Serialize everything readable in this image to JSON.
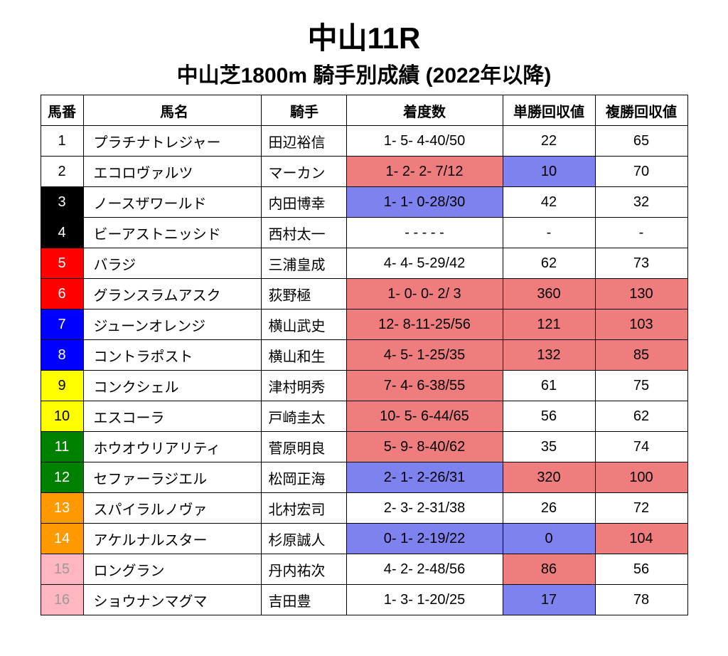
{
  "title_main": "中山11R",
  "title_sub": "中山芝1800m 騎手別成績 (2022年以降)",
  "columns": [
    "馬番",
    "馬名",
    "騎手",
    "着度数",
    "単勝回収値",
    "複勝回収値"
  ],
  "colors": {
    "white": {
      "bg": "#ffffff",
      "fg": "#000000"
    },
    "black": {
      "bg": "#000000",
      "fg": "#ffffff"
    },
    "red": {
      "bg": "#ff0000",
      "fg": "#ffffff"
    },
    "blue": {
      "bg": "#0000ff",
      "fg": "#ffffff"
    },
    "yellow": {
      "bg": "#ffff00",
      "fg": "#000000"
    },
    "green": {
      "bg": "#008000",
      "fg": "#ffffff"
    },
    "orange": {
      "bg": "#ff9900",
      "fg": "#ffffff"
    },
    "pink": {
      "bg": "#ffb6c1",
      "fg": "#999999"
    }
  },
  "highlight": {
    "red": "#ef7d7d",
    "blue": "#7d82ef"
  },
  "rows": [
    {
      "num": "1",
      "num_color": "white",
      "name": "プラチナトレジャー",
      "jockey": "田辺裕信",
      "rec": "1- 5- 4-40/50",
      "rec_hl": "",
      "win": "22",
      "win_hl": "",
      "place": "65",
      "place_hl": ""
    },
    {
      "num": "2",
      "num_color": "white",
      "name": "エコロヴァルツ",
      "jockey": "マーカン",
      "rec": "1- 2- 2- 7/12",
      "rec_hl": "red",
      "win": "10",
      "win_hl": "blue",
      "place": "70",
      "place_hl": ""
    },
    {
      "num": "3",
      "num_color": "black",
      "name": "ノースザワールド",
      "jockey": "内田博幸",
      "rec": "1- 1- 0-28/30",
      "rec_hl": "blue",
      "win": "42",
      "win_hl": "",
      "place": "32",
      "place_hl": ""
    },
    {
      "num": "4",
      "num_color": "black",
      "name": "ビーアストニッシド",
      "jockey": "西村太一",
      "rec": "-  -  -  -  -",
      "rec_hl": "",
      "win": "-",
      "win_hl": "",
      "place": "-",
      "place_hl": ""
    },
    {
      "num": "5",
      "num_color": "red",
      "name": "バラジ",
      "jockey": "三浦皇成",
      "rec": "4- 4- 5-29/42",
      "rec_hl": "",
      "win": "62",
      "win_hl": "",
      "place": "73",
      "place_hl": ""
    },
    {
      "num": "6",
      "num_color": "red",
      "name": "グランスラムアスク",
      "jockey": "荻野極",
      "rec": "1- 0- 0- 2/ 3",
      "rec_hl": "red",
      "win": "360",
      "win_hl": "red",
      "place": "130",
      "place_hl": "red"
    },
    {
      "num": "7",
      "num_color": "blue",
      "name": "ジューンオレンジ",
      "jockey": "横山武史",
      "rec": "12- 8-11-25/56",
      "rec_hl": "red",
      "win": "121",
      "win_hl": "red",
      "place": "103",
      "place_hl": "red"
    },
    {
      "num": "8",
      "num_color": "blue",
      "name": "コントラポスト",
      "jockey": "横山和生",
      "rec": "4- 5- 1-25/35",
      "rec_hl": "red",
      "win": "132",
      "win_hl": "red",
      "place": "85",
      "place_hl": "red"
    },
    {
      "num": "9",
      "num_color": "yellow",
      "name": "コンクシェル",
      "jockey": "津村明秀",
      "rec": "7- 4- 6-38/55",
      "rec_hl": "red",
      "win": "61",
      "win_hl": "",
      "place": "75",
      "place_hl": ""
    },
    {
      "num": "10",
      "num_color": "yellow",
      "name": "エスコーラ",
      "jockey": "戸崎圭太",
      "rec": "10- 5- 6-44/65",
      "rec_hl": "red",
      "win": "56",
      "win_hl": "",
      "place": "62",
      "place_hl": ""
    },
    {
      "num": "11",
      "num_color": "green",
      "name": "ホウオウリアリティ",
      "jockey": "菅原明良",
      "rec": "5- 9- 8-40/62",
      "rec_hl": "red",
      "win": "35",
      "win_hl": "",
      "place": "74",
      "place_hl": ""
    },
    {
      "num": "12",
      "num_color": "green",
      "name": "セファーラジエル",
      "jockey": "松岡正海",
      "rec": "2- 1- 2-26/31",
      "rec_hl": "blue",
      "win": "320",
      "win_hl": "red",
      "place": "100",
      "place_hl": "red"
    },
    {
      "num": "13",
      "num_color": "orange",
      "name": "スパイラルノヴァ",
      "jockey": "北村宏司",
      "rec": "2- 3- 2-31/38",
      "rec_hl": "",
      "win": "26",
      "win_hl": "",
      "place": "72",
      "place_hl": ""
    },
    {
      "num": "14",
      "num_color": "orange",
      "name": "アケルナルスター",
      "jockey": "杉原誠人",
      "rec": "0- 1- 2-19/22",
      "rec_hl": "blue",
      "win": "0",
      "win_hl": "blue",
      "place": "104",
      "place_hl": "red"
    },
    {
      "num": "15",
      "num_color": "pink",
      "name": "ロングラン",
      "jockey": "丹内祐次",
      "rec": "4- 2- 2-48/56",
      "rec_hl": "",
      "win": "86",
      "win_hl": "red",
      "place": "56",
      "place_hl": ""
    },
    {
      "num": "16",
      "num_color": "pink",
      "name": "ショウナンマグマ",
      "jockey": "吉田豊",
      "rec": "1- 3- 1-20/25",
      "rec_hl": "",
      "win": "17",
      "win_hl": "blue",
      "place": "78",
      "place_hl": ""
    }
  ]
}
